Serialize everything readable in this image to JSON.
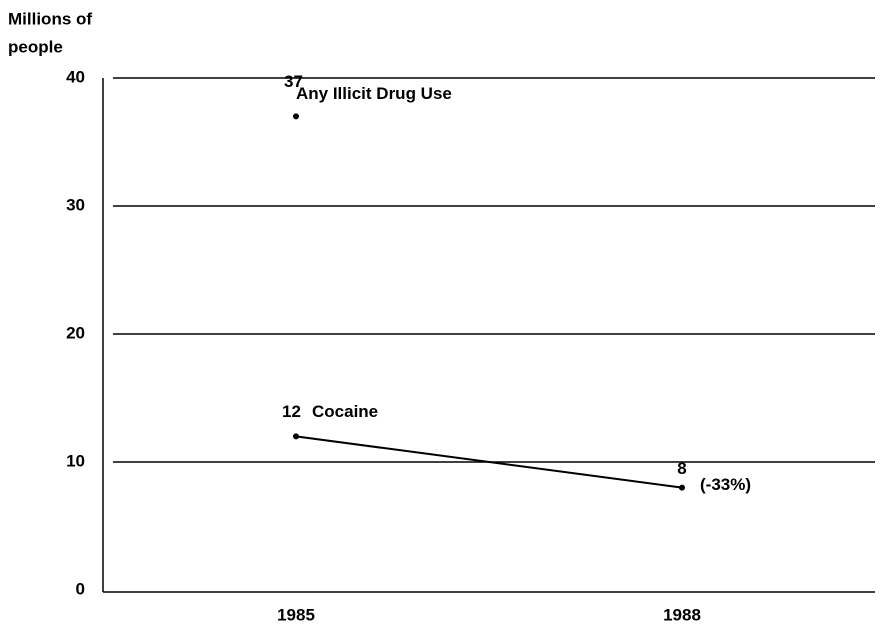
{
  "chart_data": {
    "type": "line",
    "y_label_lines": [
      "Millions of",
      "people"
    ],
    "categories": [
      "1985",
      "1988"
    ],
    "series": [
      {
        "name": "Any Illicit Drug Use",
        "color": "#000000",
        "values": [
          37,
          null
        ],
        "value_labels": [
          "37",
          null
        ]
      },
      {
        "name": "Cocaine",
        "color": "#000000",
        "values": [
          12,
          8
        ],
        "value_labels": [
          "12",
          "8"
        ]
      }
    ],
    "annotations": [
      "(-33%)"
    ],
    "ylim": [
      0,
      40
    ],
    "yticks": [
      0,
      10,
      20,
      30,
      40
    ],
    "grid": true
  }
}
